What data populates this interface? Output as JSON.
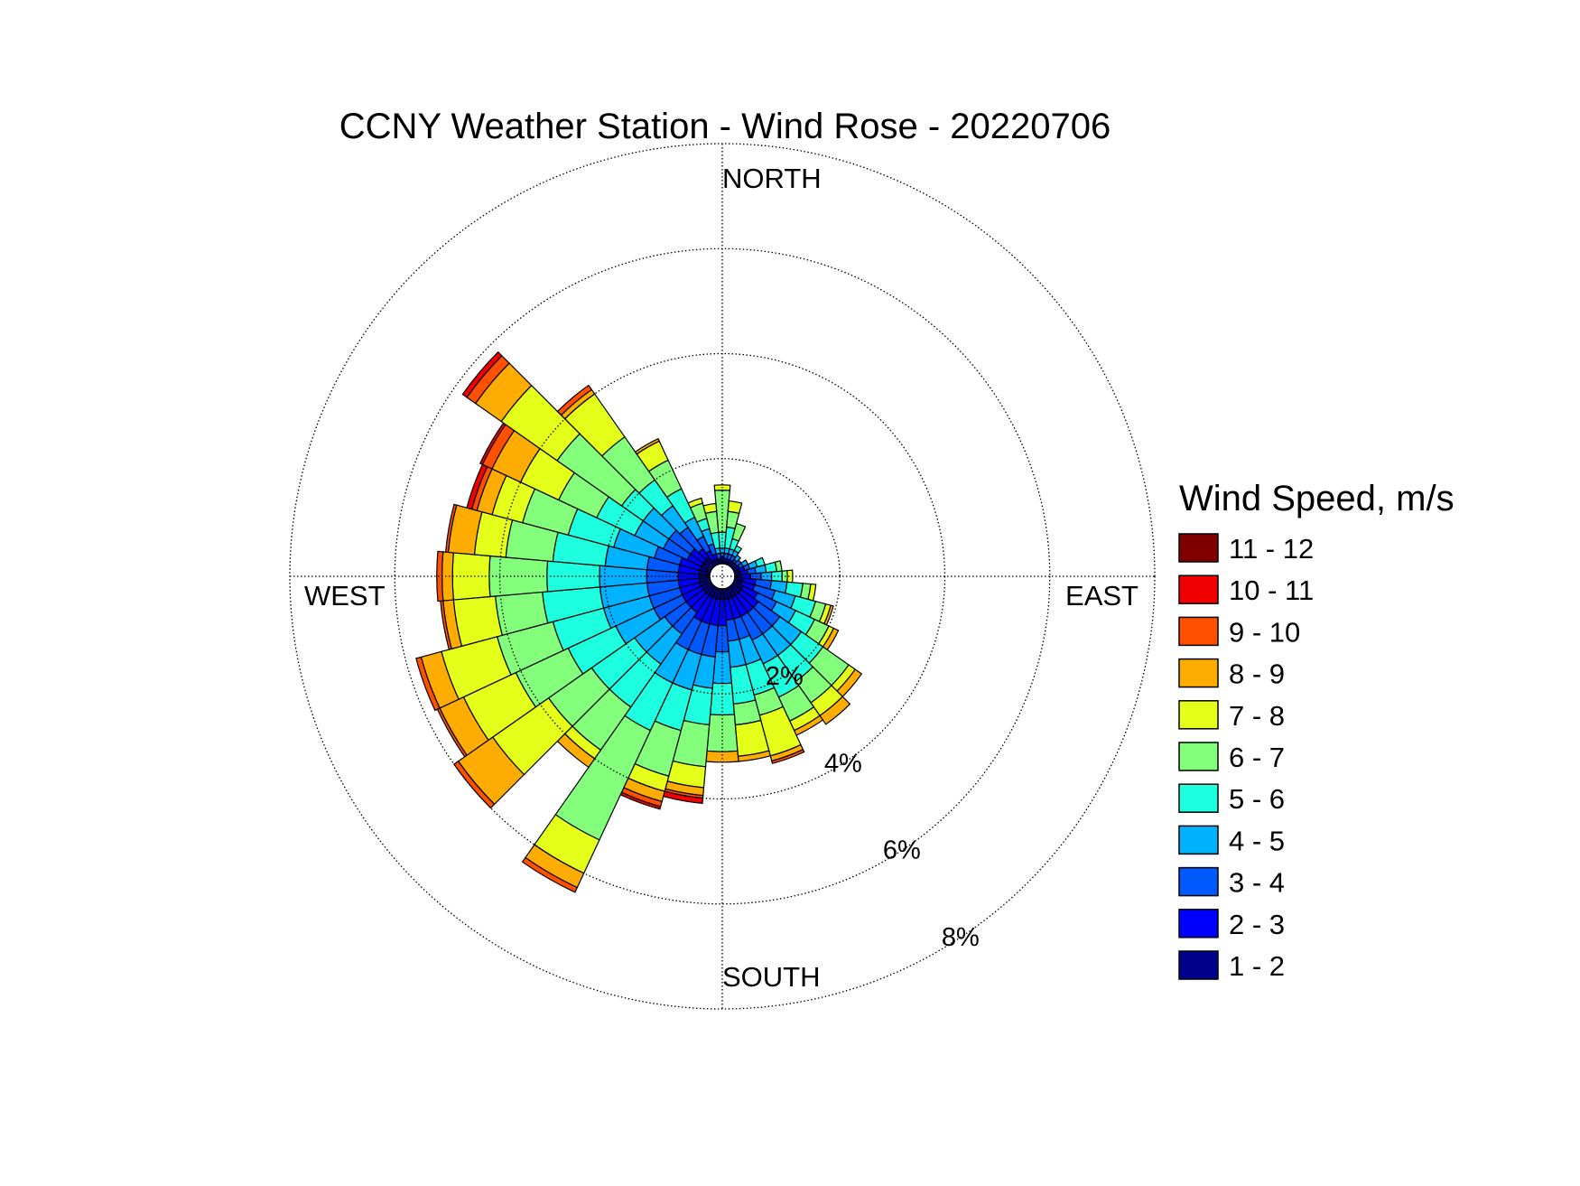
{
  "chart_data": {
    "type": "wind-rose",
    "title": "CCNY Weather Station - Wind Rose - 20220706",
    "direction_labels": {
      "north": "NORTH",
      "south": "SOUTH",
      "east": "EAST",
      "west": "WEST"
    },
    "rings": [
      {
        "value": 2,
        "label": "2%"
      },
      {
        "value": 4,
        "label": "4%"
      },
      {
        "value": 6,
        "label": "6%"
      },
      {
        "value": 8,
        "label": "8%"
      }
    ],
    "radial_max": 8,
    "radial_unit": "%",
    "legend": {
      "title": "Wind Speed, m/s",
      "bins": [
        {
          "label": "11 - 12",
          "color": "#800000"
        },
        {
          "label": "10 - 11",
          "color": "#f00000"
        },
        {
          "label": "9 - 10",
          "color": "#ff5000"
        },
        {
          "label": "8 - 9",
          "color": "#ffac00"
        },
        {
          "label": "7 - 8",
          "color": "#e3ff1a"
        },
        {
          "label": "6 - 7",
          "color": "#83ff7c"
        },
        {
          "label": "5 - 6",
          "color": "#1dffde"
        },
        {
          "label": "4 - 5",
          "color": "#00b2ff"
        },
        {
          "label": "3 - 4",
          "color": "#0058ff"
        },
        {
          "label": "2 - 3",
          "color": "#0000ff"
        },
        {
          "label": "1 - 2",
          "color": "#00008c"
        }
      ]
    },
    "bin_order_inner_to_outer": [
      "1 - 2",
      "2 - 3",
      "3 - 4",
      "4 - 5",
      "5 - 6",
      "6 - 7",
      "7 - 8",
      "8 - 9",
      "9 - 10",
      "10 - 11",
      "11 - 12"
    ],
    "sector_width_deg": 10,
    "sectors": [
      {
        "direction_deg": 0,
        "cumulative_pct": [
          0.05,
          0.12,
          0.2,
          0.3,
          0.6,
          1.4,
          1.5
        ]
      },
      {
        "direction_deg": 10,
        "cumulative_pct": [
          0.05,
          0.1,
          0.2,
          0.3,
          0.7,
          1.0,
          1.2
        ]
      },
      {
        "direction_deg": 20,
        "cumulative_pct": [
          0.05,
          0.1,
          0.2,
          0.3,
          0.5,
          0.8
        ]
      },
      {
        "direction_deg": 30,
        "cumulative_pct": [
          0.05,
          0.1,
          0.2,
          0.3,
          0.4
        ]
      },
      {
        "direction_deg": 40,
        "cumulative_pct": [
          0.05,
          0.1,
          0.15,
          0.25
        ]
      },
      {
        "direction_deg": 50,
        "cumulative_pct": [
          0.05,
          0.1,
          0.2
        ]
      },
      {
        "direction_deg": 60,
        "cumulative_pct": [
          0.05,
          0.12,
          0.2,
          0.3
        ]
      },
      {
        "direction_deg": 70,
        "cumulative_pct": [
          0.1,
          0.2,
          0.3,
          0.45,
          0.6
        ]
      },
      {
        "direction_deg": 80,
        "cumulative_pct": [
          0.1,
          0.25,
          0.4,
          0.6,
          0.8,
          0.9
        ]
      },
      {
        "direction_deg": 90,
        "cumulative_pct": [
          0.1,
          0.3,
          0.5,
          0.7,
          0.9,
          1.0,
          1.1
        ]
      },
      {
        "direction_deg": 100,
        "cumulative_pct": [
          0.15,
          0.4,
          0.7,
          1.0,
          1.3,
          1.45,
          1.55
        ]
      },
      {
        "direction_deg": 110,
        "cumulative_pct": [
          0.15,
          0.4,
          0.8,
          1.2,
          1.6,
          1.8,
          1.9,
          1.95
        ]
      },
      {
        "direction_deg": 120,
        "cumulative_pct": [
          0.2,
          0.5,
          0.9,
          1.3,
          1.7,
          2.0,
          2.1,
          2.2
        ]
      },
      {
        "direction_deg": 130,
        "cumulative_pct": [
          0.2,
          0.6,
          1.1,
          1.6,
          2.1,
          2.7,
          2.85,
          3.0
        ]
      },
      {
        "direction_deg": 140,
        "cumulative_pct": [
          0.2,
          0.6,
          1.1,
          1.6,
          2.2,
          2.7,
          3.0,
          3.2
        ]
      },
      {
        "direction_deg": 150,
        "cumulative_pct": [
          0.2,
          0.6,
          1.1,
          1.6,
          2.3,
          2.8,
          3.0,
          3.1
        ]
      },
      {
        "direction_deg": 160,
        "cumulative_pct": [
          0.2,
          0.6,
          1.0,
          1.5,
          2.1,
          2.5,
          3.3,
          3.4,
          3.45
        ]
      },
      {
        "direction_deg": 170,
        "cumulative_pct": [
          0.2,
          0.6,
          1.0,
          1.5,
          2.2,
          2.6,
          3.2,
          3.3
        ]
      },
      {
        "direction_deg": 180,
        "cumulative_pct": [
          0.2,
          0.7,
          1.2,
          1.8,
          2.4,
          3.1,
          3.1,
          3.3
        ]
      },
      {
        "direction_deg": 190,
        "cumulative_pct": [
          0.2,
          0.7,
          1.3,
          1.9,
          2.6,
          3.4,
          3.8,
          3.95,
          4.0,
          4.1
        ]
      },
      {
        "direction_deg": 200,
        "cumulative_pct": [
          0.2,
          0.7,
          1.3,
          2.0,
          2.8,
          3.7,
          4.0,
          4.2,
          4.3,
          4.35
        ]
      },
      {
        "direction_deg": 210,
        "cumulative_pct": [
          0.2,
          0.7,
          1.3,
          2.0,
          3.0,
          5.3,
          6.0,
          6.3,
          6.4
        ]
      },
      {
        "direction_deg": 220,
        "cumulative_pct": [
          0.2,
          0.6,
          1.1,
          1.8,
          2.8,
          3.8,
          4.0,
          4.2
        ]
      },
      {
        "direction_deg": 230,
        "cumulative_pct": [
          0.2,
          0.6,
          1.1,
          1.8,
          2.8,
          3.8,
          5.1,
          5.9,
          6.0
        ]
      },
      {
        "direction_deg": 240,
        "cumulative_pct": [
          0.2,
          0.6,
          1.2,
          2.0,
          3.0,
          4.1,
          5.2,
          5.7,
          5.75
        ]
      },
      {
        "direction_deg": 250,
        "cumulative_pct": [
          0.2,
          0.6,
          1.2,
          2.1,
          3.1,
          4.2,
          5.3,
          5.7,
          5.8
        ]
      },
      {
        "direction_deg": 260,
        "cumulative_pct": [
          0.2,
          0.6,
          1.2,
          2.1,
          3.2,
          4.1,
          4.9,
          5.1,
          5.15
        ]
      },
      {
        "direction_deg": 270,
        "cumulative_pct": [
          0.2,
          0.6,
          1.2,
          2.1,
          3.1,
          4.2,
          4.9,
          5.1,
          5.2
        ]
      },
      {
        "direction_deg": 280,
        "cumulative_pct": [
          0.2,
          0.6,
          1.2,
          2.0,
          3.0,
          3.9,
          4.5,
          5.0,
          5.05
        ]
      },
      {
        "direction_deg": 290,
        "cumulative_pct": [
          0.2,
          0.6,
          1.1,
          1.9,
          2.8,
          3.7,
          4.3,
          4.6,
          4.7,
          4.8
        ]
      },
      {
        "direction_deg": 300,
        "cumulative_pct": [
          0.2,
          0.5,
          1.0,
          1.6,
          2.4,
          3.2,
          4.0,
          4.6,
          4.8,
          4.85
        ]
      },
      {
        "direction_deg": 310,
        "cumulative_pct": [
          0.2,
          0.5,
          1.0,
          1.6,
          2.1,
          3.6,
          4.9,
          5.5,
          5.7,
          5.8
        ]
      },
      {
        "direction_deg": 320,
        "cumulative_pct": [
          0.2,
          0.4,
          0.9,
          1.4,
          2.0,
          3.0,
          4.0,
          4.1,
          4.2
        ]
      },
      {
        "direction_deg": 330,
        "cumulative_pct": [
          0.1,
          0.3,
          0.6,
          1.0,
          1.6,
          2.2,
          2.6,
          2.65
        ]
      },
      {
        "direction_deg": 340,
        "cumulative_pct": [
          0.1,
          0.2,
          0.4,
          0.7,
          0.9,
          1.2,
          1.3
        ]
      },
      {
        "direction_deg": 350,
        "cumulative_pct": [
          0.05,
          0.1,
          0.2,
          0.3,
          0.6,
          1.0,
          1.15
        ]
      }
    ]
  }
}
